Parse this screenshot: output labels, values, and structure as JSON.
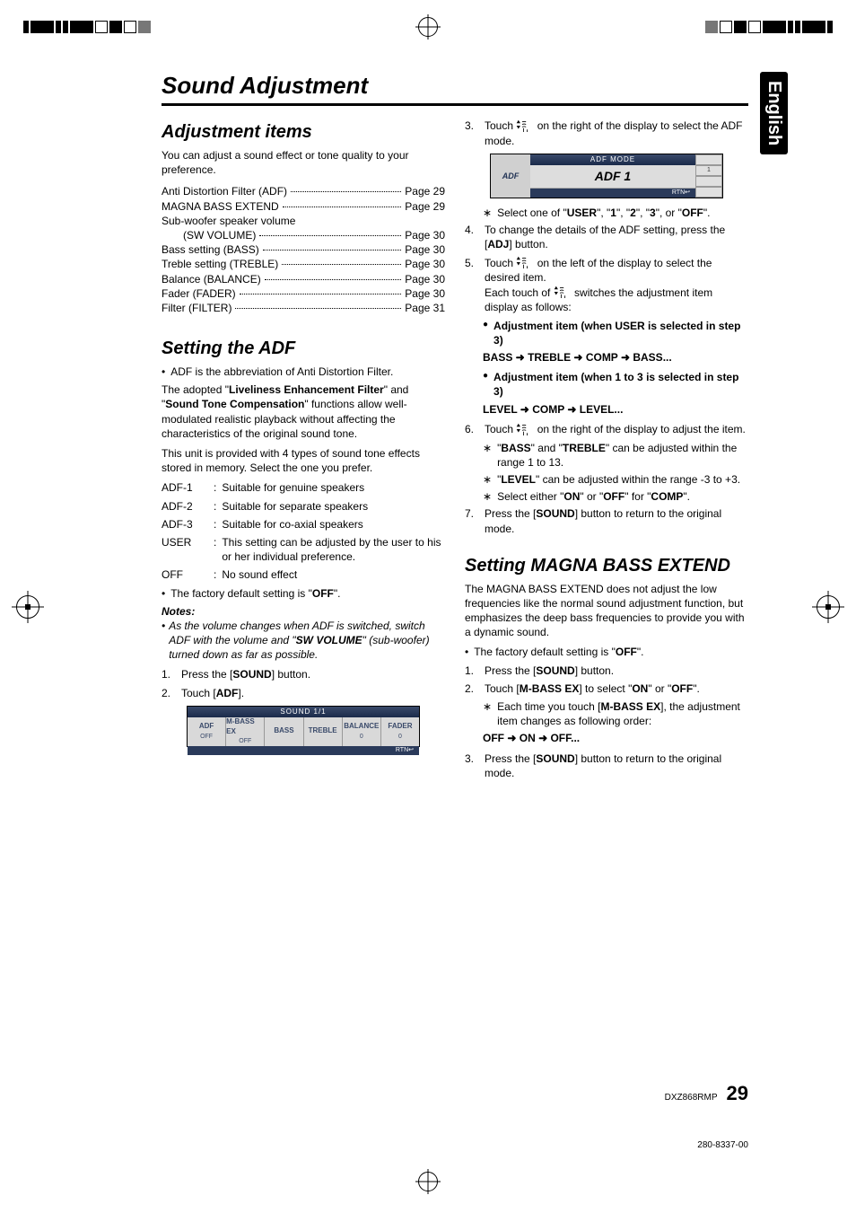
{
  "language_tab": "English",
  "section_title": "Sound Adjustment",
  "left": {
    "h_adjustment_items": "Adjustment items",
    "adjustment_intro": "You can adjust a sound effect or tone quality to your preference.",
    "toc": [
      {
        "label": "Anti Distortion Filter (ADF)",
        "page": "Page 29",
        "indent": false
      },
      {
        "label": "MAGNA BASS EXTEND",
        "page": "Page 29",
        "indent": false
      },
      {
        "label": "Sub-woofer speaker volume",
        "page": "",
        "indent": false
      },
      {
        "label": "(SW VOLUME)",
        "page": "Page 30",
        "indent": true
      },
      {
        "label": "Bass setting (BASS)",
        "page": "Page 30",
        "indent": false
      },
      {
        "label": "Treble setting (TREBLE)",
        "page": "Page 30",
        "indent": false
      },
      {
        "label": "Balance (BALANCE)",
        "page": "Page 30",
        "indent": false
      },
      {
        "label": "Fader (FADER)",
        "page": "Page 30",
        "indent": false
      },
      {
        "label": "Filter (FILTER)",
        "page": "Page 31",
        "indent": false
      }
    ],
    "h_setting_adf": "Setting the ADF",
    "adf_abbrev": "ADF is the abbreviation of Anti Distortion Filter.",
    "adf_para1a": "The adopted \"",
    "adf_para1b": "Liveliness Enhancement Filter",
    "adf_para1c": "\" and \"",
    "adf_para1d": "Sound Tone Compensation",
    "adf_para1e": "\" functions allow well-modulated realistic playback without affecting the characteristics of the original sound tone.",
    "adf_para2": "This unit is provided with 4 types of sound tone effects stored in memory. Select the one you prefer.",
    "adf_defs": [
      {
        "k": "ADF-1",
        "v": "Suitable for genuine speakers"
      },
      {
        "k": "ADF-2",
        "v": "Suitable for separate speakers"
      },
      {
        "k": "ADF-3",
        "v": "Suitable for co-axial speakers"
      },
      {
        "k": "USER",
        "v": "This setting can be adjusted by the user to his or her individual preference."
      },
      {
        "k": "OFF",
        "v": "No sound effect"
      }
    ],
    "adf_default_a": "The factory default setting is \"",
    "adf_default_b": "OFF",
    "adf_default_c": "\".",
    "notes_head": "Notes:",
    "note_a": "As the volume changes when ADF is switched, switch ADF with the volume and \"",
    "note_b": "SW VOLUME",
    "note_c": "\" (sub-woofer) turned down as far as possible.",
    "step1_a": "Press the [",
    "step1_b": "SOUND",
    "step1_c": "] button.",
    "step2_a": "Touch [",
    "step2_b": "ADF",
    "step2_c": "].",
    "sound_menu": {
      "header": "SOUND 1/1",
      "buttons": [
        "ADF",
        "M-BASS EX",
        "BASS",
        "TREBLE",
        "BALANCE",
        "FADER"
      ],
      "sub": [
        "OFF",
        "OFF",
        "",
        "",
        "0",
        "0"
      ],
      "rtn": "RTN↩"
    }
  },
  "right": {
    "step3": "Touch  on the right of the display to select the ADF mode.",
    "adf_mode_img": {
      "hdr": "ADF MODE",
      "left": "ADF",
      "body": "ADF  1",
      "rtn": "RTN↩",
      "side": [
        "",
        "1",
        "",
        ""
      ]
    },
    "step3_sub_a": "Select one of \"",
    "step3_sub_parts": [
      "USER",
      "\", \"",
      "1",
      "\", \"",
      "2",
      "\", \"",
      "3",
      "\", or \"",
      "OFF",
      "\"."
    ],
    "step4_a": "To change the details of the ADF setting, press the [",
    "step4_b": "ADJ",
    "step4_c": "] button.",
    "step5_a": "Touch  on the left of the display to select the desired item.",
    "step5_b": "Each touch of   switches the adjustment item display as follows:",
    "step5_item1_head": "Adjustment item (when USER is selected in step 3)",
    "step5_item1_seq": [
      "BASS",
      " ➜ ",
      "TREBLE",
      " ➜ ",
      "COMP",
      " ➜ ",
      "BASS",
      "..."
    ],
    "step5_item2_head": "Adjustment item (when 1 to 3 is selected in step 3)",
    "step5_item2_seq": [
      "LEVEL",
      " ➜ ",
      "COMP",
      " ➜ ",
      "LEVEL",
      "..."
    ],
    "step6": "Touch  on the right of the display to adjust the item.",
    "step6_sub1_a": "\"",
    "step6_sub1_b": "BASS",
    "step6_sub1_c": "\" and \"",
    "step6_sub1_d": "TREBLE",
    "step6_sub1_e": "\" can be adjusted within the range 1 to 13.",
    "step6_sub2_a": "\"",
    "step6_sub2_b": "LEVEL",
    "step6_sub2_c": "\" can be adjusted within the range -3 to +3.",
    "step6_sub3_a": "Select either \"",
    "step6_sub3_b": "ON",
    "step6_sub3_c": "\" or \"",
    "step6_sub3_d": "OFF",
    "step6_sub3_e": "\" for \"",
    "step6_sub3_f": "COMP",
    "step6_sub3_g": "\".",
    "step7_a": "Press the [",
    "step7_b": "SOUND",
    "step7_c": "] button to return to the original mode.",
    "h_magna": "Setting MAGNA BASS EXTEND",
    "magna_intro": "The MAGNA BASS EXTEND does not adjust the low frequencies like the normal sound adjustment function, but emphasizes the deep bass frequencies to provide you with a dynamic sound.",
    "magna_default_a": "The factory default setting is \"",
    "magna_default_b": "OFF",
    "magna_default_c": "\".",
    "mstep1_a": "Press the [",
    "mstep1_b": "SOUND",
    "mstep1_c": "] button.",
    "mstep2_a": "Touch [",
    "mstep2_b": "M-BASS EX",
    "mstep2_c": "] to select \"",
    "mstep2_d": "ON",
    "mstep2_e": "\" or \"",
    "mstep2_f": "OFF",
    "mstep2_g": "\".",
    "mstep2_sub_a": "Each time you touch [",
    "mstep2_sub_b": "M-BASS EX",
    "mstep2_sub_c": "], the adjustment item changes as following order:",
    "mstep2_seq": [
      "OFF",
      " ➜ ",
      "ON",
      " ➜ ",
      "OFF..."
    ],
    "mstep3_a": "Press the [",
    "mstep3_b": "SOUND",
    "mstep3_c": "] button to return to the original mode."
  },
  "footer": {
    "model": "DXZ868RMP",
    "page": "29",
    "partno": "280-8337-00"
  }
}
